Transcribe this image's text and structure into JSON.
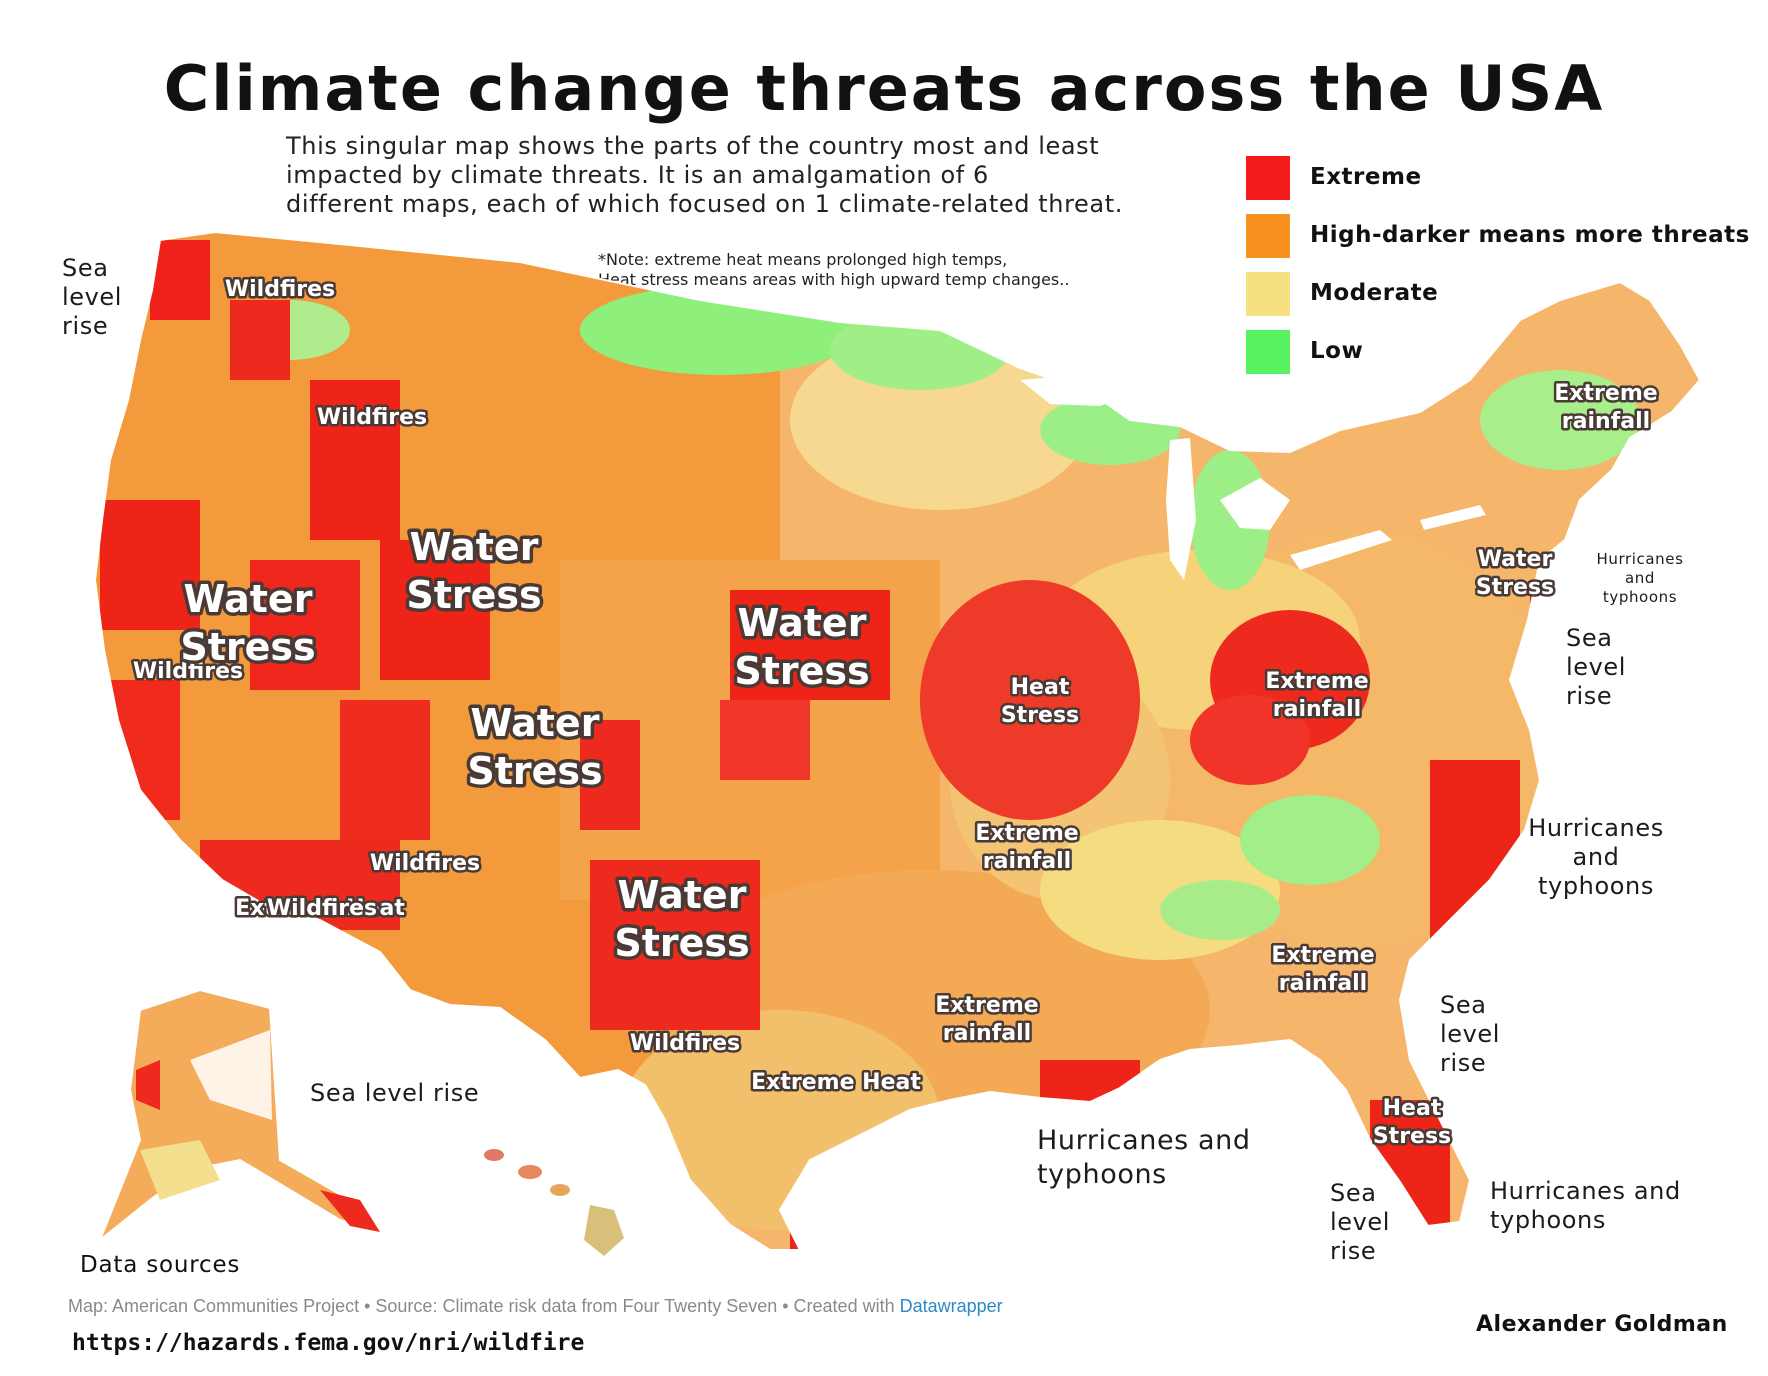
{
  "title": "Climate change threats across the USA",
  "subtitle_lines": [
    "This singular map shows the parts of the country most and least",
    "impacted by climate threats. It is an amalgamation of 6",
    "different maps, each of which focused on 1 climate-related threat."
  ],
  "note_lines": [
    "*Note: extreme heat means prolonged high temps,",
    "Heat stress means areas with high upward temp changes.."
  ],
  "legend": [
    {
      "label": "Extreme",
      "color": "#f41b1b"
    },
    {
      "label": "High-darker means more threats",
      "color": "#f7921e"
    },
    {
      "label": "Moderate",
      "color": "#f6e07f"
    },
    {
      "label": "Low",
      "color": "#55f25d"
    }
  ],
  "map_labels": [
    {
      "text": "Wildfires",
      "style": "badge"
    },
    {
      "text": "Wildfires",
      "style": "badge"
    },
    {
      "text": "Wildfires",
      "style": "badge"
    },
    {
      "text": "Water Stress",
      "style": "badge"
    },
    {
      "text": "Wildfires",
      "style": "badge"
    },
    {
      "text": "Water Stress",
      "style": "badge"
    },
    {
      "text": "Water Stress",
      "style": "badge"
    },
    {
      "text": "Water Stress",
      "style": "badge"
    },
    {
      "text": "Wildfires",
      "style": "badge"
    },
    {
      "text": "Extreme Heat",
      "style": "badge"
    },
    {
      "text": "Water Stress",
      "style": "badge"
    },
    {
      "text": "Wildfires",
      "style": "badge"
    },
    {
      "text": "Extreme Heat",
      "style": "badge"
    },
    {
      "text": "Heat Stress",
      "style": "badge"
    },
    {
      "text": "Extreme rainfall",
      "style": "badge"
    },
    {
      "text": "Extreme rainfall",
      "style": "badge"
    },
    {
      "text": "Extreme rainfall",
      "style": "badge"
    },
    {
      "text": "Extreme rainfall",
      "style": "badge"
    },
    {
      "text": "Extreme rainfall",
      "style": "badge"
    },
    {
      "text": "Water Stress",
      "style": "badge"
    },
    {
      "text": "Heat Stress",
      "style": "badge"
    },
    {
      "text": "Sea level rise",
      "style": "plain"
    },
    {
      "text": "Sea level rise",
      "style": "plain"
    },
    {
      "text": "Sea level rise",
      "style": "plain"
    },
    {
      "text": "Sea level rise",
      "style": "plain"
    },
    {
      "text": "Sea level rise",
      "style": "plain"
    },
    {
      "text": "Hurricanes and typhoons",
      "style": "plain"
    },
    {
      "text": "Hurricanes and typhoons",
      "style": "plain"
    },
    {
      "text": "Hurricanes and typhoons",
      "style": "plain"
    },
    {
      "text": "Hurricanes and typhoons",
      "style": "plain"
    }
  ],
  "data_sources_label": "Data sources",
  "source_text": "Map: American Communities Project • Source: Climate risk data from Four Twenty Seven • Created with ",
  "source_link": "Datawrapper",
  "url": "https://hazards.fema.gov/nri/wildfire",
  "author": "Alexander Goldman"
}
